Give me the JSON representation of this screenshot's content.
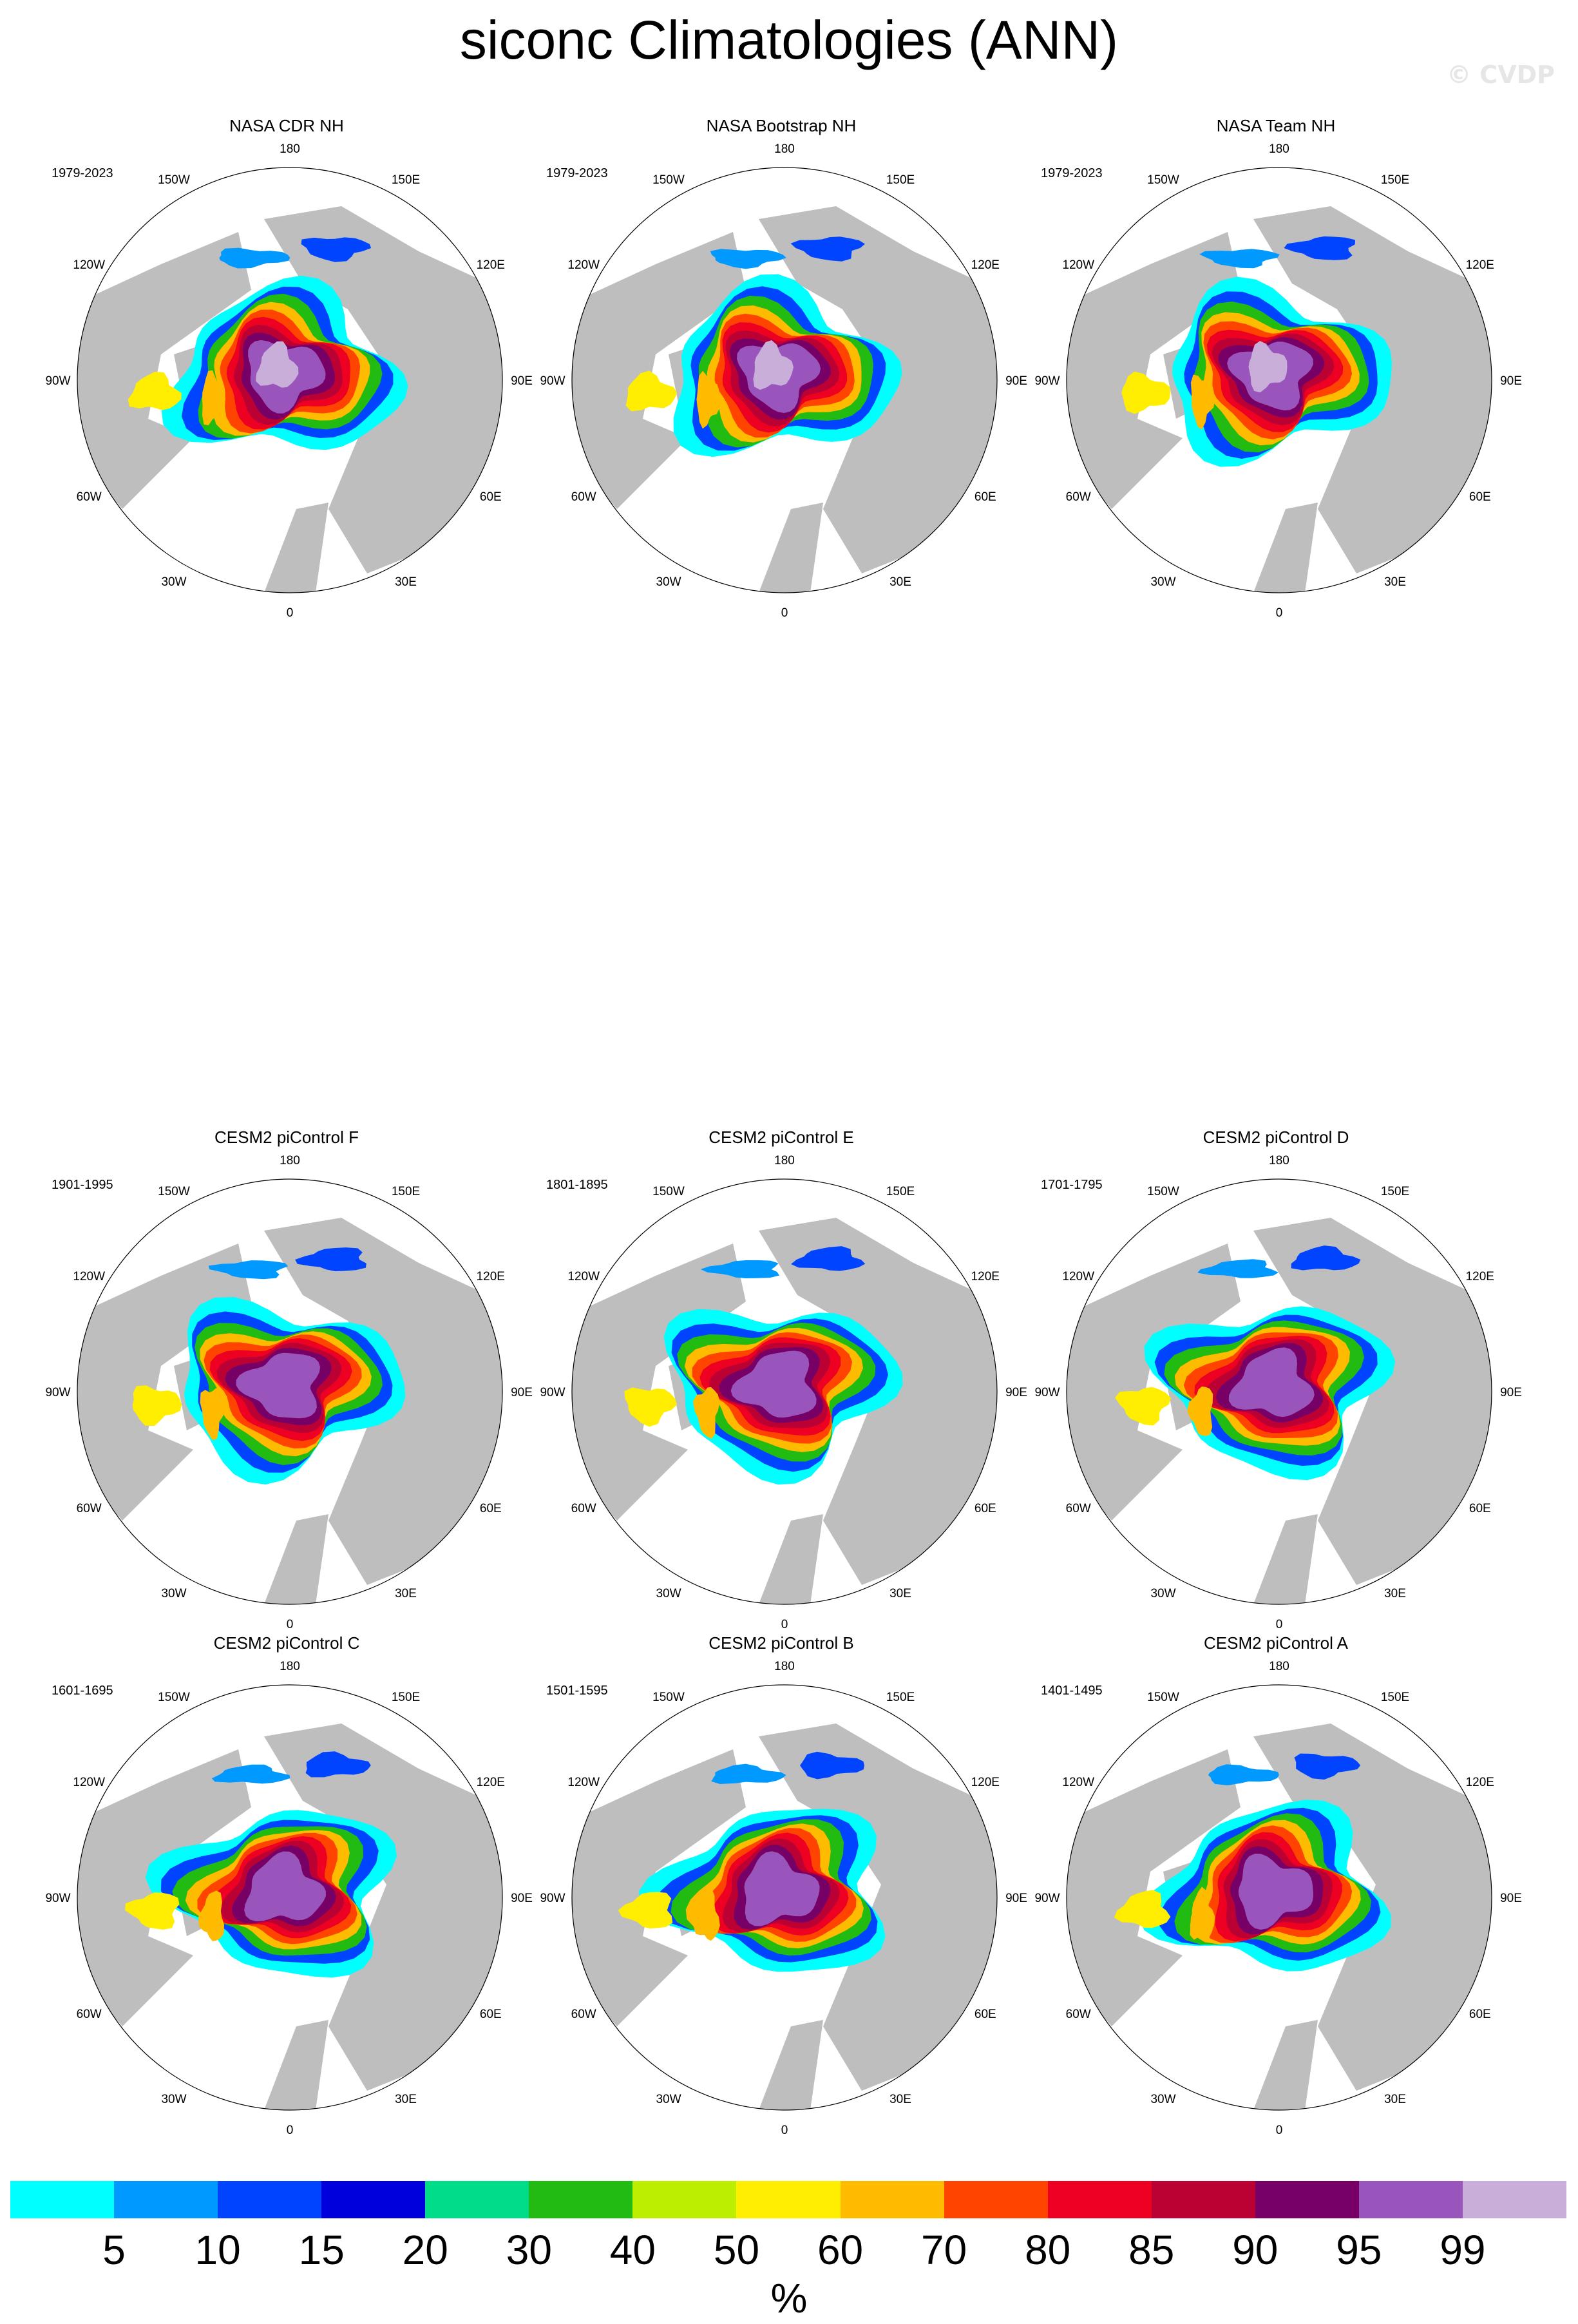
{
  "title": "siconc Climatologies (ANN)",
  "watermark": "© CVDP",
  "lon_labels": [
    "180",
    "150E",
    "120E",
    "90E",
    "60E",
    "30E",
    "0",
    "30W",
    "60W",
    "90W",
    "120W",
    "150W"
  ],
  "panels": [
    {
      "title": "NASA CDR NH",
      "period": "1979-2023"
    },
    {
      "title": "NASA Bootstrap NH",
      "period": "1979-2023"
    },
    {
      "title": "NASA Team NH",
      "period": "1979-2023"
    },
    {
      "title": "CESM2 piControl F",
      "period": "1901-1995"
    },
    {
      "title": "CESM2 piControl E",
      "period": "1801-1895"
    },
    {
      "title": "CESM2 piControl D",
      "period": "1701-1795"
    },
    {
      "title": "CESM2 piControl C",
      "period": "1601-1695"
    },
    {
      "title": "CESM2 piControl B",
      "period": "1501-1595"
    },
    {
      "title": "CESM2 piControl A",
      "period": "1401-1495"
    }
  ],
  "colorbar": {
    "colors": [
      "#00ffff",
      "#0099ff",
      "#0044ff",
      "#0000dd",
      "#00dd88",
      "#22bb11",
      "#bbee00",
      "#ffee00",
      "#ffbb00",
      "#ff4400",
      "#ee0022",
      "#bb0033",
      "#770066",
      "#9955bb",
      "#c9aed9"
    ],
    "labels": [
      "5",
      "10",
      "15",
      "20",
      "30",
      "40",
      "50",
      "60",
      "70",
      "80",
      "85",
      "90",
      "95",
      "99"
    ],
    "unit": "%"
  },
  "land_color": "#bebebe",
  "ocean_color": "#ffffff"
}
